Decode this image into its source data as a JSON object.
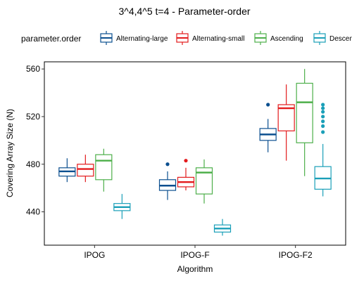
{
  "chart_data": {
    "type": "boxplot",
    "title": "3^4,4^5 t=4 - Parameter-order",
    "xlabel": "Algorithm",
    "ylabel": "Covering Array Size (N)",
    "ylim": [
      412,
      566
    ],
    "y_ticks": [
      440,
      480,
      520,
      560
    ],
    "categories": [
      "IPOG",
      "IPOG-F",
      "IPOG-F2"
    ],
    "legend": {
      "title": "parameter.order",
      "placement": "top",
      "entries": [
        "Alternating-large",
        "Alternating-small",
        "Ascending",
        "Descending"
      ]
    },
    "grid": false,
    "series": [
      {
        "name": "Alternating-large",
        "color": "#0b4f8f",
        "boxes": [
          {
            "category": "IPOG",
            "whisker_low": 465,
            "q1": 470,
            "median": 474,
            "q3": 477,
            "whisker_high": 485,
            "outliers": []
          },
          {
            "category": "IPOG-F",
            "whisker_low": 450,
            "q1": 458,
            "median": 462,
            "q3": 467,
            "whisker_high": 474,
            "outliers": [
              480
            ]
          },
          {
            "category": "IPOG-F2",
            "whisker_low": 490,
            "q1": 500,
            "median": 505,
            "q3": 510,
            "whisker_high": 518,
            "outliers": [
              530
            ]
          }
        ]
      },
      {
        "name": "Alternating-small",
        "color": "#e31a1c",
        "boxes": [
          {
            "category": "IPOG",
            "whisker_low": 465,
            "q1": 470,
            "median": 476,
            "q3": 480,
            "whisker_high": 488,
            "outliers": []
          },
          {
            "category": "IPOG-F",
            "whisker_low": 458,
            "q1": 461,
            "median": 465,
            "q3": 469,
            "whisker_high": 477,
            "outliers": [
              483
            ]
          },
          {
            "category": "IPOG-F2",
            "whisker_low": 483,
            "q1": 508,
            "median": 527,
            "q3": 530,
            "whisker_high": 547,
            "outliers": []
          }
        ]
      },
      {
        "name": "Ascending",
        "color": "#4daf4a",
        "boxes": [
          {
            "category": "IPOG",
            "whisker_low": 457,
            "q1": 467,
            "median": 483,
            "q3": 488,
            "whisker_high": 493,
            "outliers": []
          },
          {
            "category": "IPOG-F",
            "whisker_low": 447,
            "q1": 455,
            "median": 473,
            "q3": 477,
            "whisker_high": 484,
            "outliers": []
          },
          {
            "category": "IPOG-F2",
            "whisker_low": 470,
            "q1": 498,
            "median": 532,
            "q3": 548,
            "whisker_high": 560,
            "outliers": []
          }
        ]
      },
      {
        "name": "Descending",
        "color": "#1a9fb8",
        "boxes": [
          {
            "category": "IPOG",
            "whisker_low": 434,
            "q1": 441,
            "median": 444,
            "q3": 447,
            "whisker_high": 455,
            "outliers": []
          },
          {
            "category": "IPOG-F",
            "whisker_low": 420,
            "q1": 423,
            "median": 426,
            "q3": 429,
            "whisker_high": 434,
            "outliers": []
          },
          {
            "category": "IPOG-F2",
            "whisker_low": 453,
            "q1": 459,
            "median": 468,
            "q3": 478,
            "whisker_high": 497,
            "outliers": [
              507,
              512,
              516,
              520,
              524,
              527,
              530
            ]
          }
        ]
      }
    ]
  }
}
